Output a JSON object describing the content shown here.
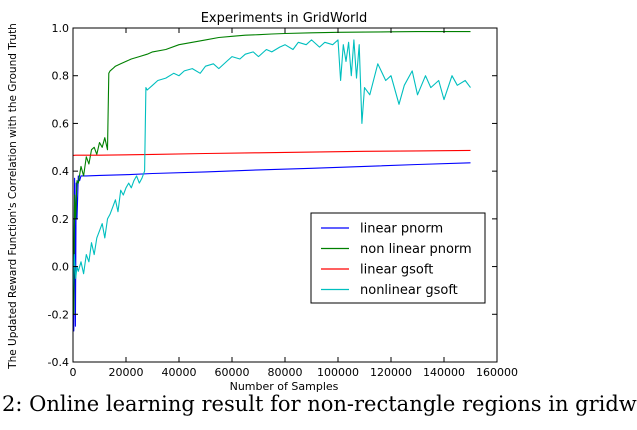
{
  "caption": "2: Online learning result for non-rectangle regions in gridw",
  "chart_data": {
    "type": "line",
    "title": "Experiments in GridWorld",
    "xlabel": "Number of Samples",
    "ylabel": "The Updated Reward Function's Correlation with the Ground Truth",
    "xlim": [
      0,
      160000
    ],
    "ylim": [
      -0.4,
      1.0
    ],
    "xticks": [
      0,
      20000,
      40000,
      60000,
      80000,
      100000,
      120000,
      140000,
      160000
    ],
    "xtick_labels": [
      "0",
      "20000",
      "40000",
      "60000",
      "80000",
      "100000",
      "120000",
      "140000",
      "160000"
    ],
    "yticks": [
      -0.4,
      -0.2,
      0.0,
      0.2,
      0.4,
      0.6,
      0.8,
      1.0
    ],
    "ytick_labels": [
      "-0.4",
      "-0.2",
      "0.0",
      "0.2",
      "0.4",
      "0.6",
      "0.8",
      "1.0"
    ],
    "grid": false,
    "legend_position": "center-right",
    "series": [
      {
        "name": "linear pnorm",
        "color": "#0000ff",
        "x": [
          0,
          300,
          600,
          900,
          1200,
          1500,
          2000,
          2500,
          3000,
          5000,
          10000,
          20000,
          30000,
          50000,
          70000,
          90000,
          110000,
          130000,
          150000
        ],
        "y": [
          0.0,
          -0.27,
          0.37,
          -0.25,
          0.35,
          0.2,
          0.38,
          0.36,
          0.38,
          0.38,
          0.382,
          0.385,
          0.39,
          0.397,
          0.405,
          0.412,
          0.42,
          0.428,
          0.435
        ]
      },
      {
        "name": "non linear pnorm",
        "color": "#008000",
        "x": [
          0,
          300,
          600,
          1000,
          1500,
          2000,
          3000,
          4000,
          5000,
          6000,
          7000,
          8000,
          9000,
          10000,
          11000,
          12000,
          13000,
          13500,
          14000,
          15000,
          16000,
          18000,
          20000,
          22000,
          25000,
          28000,
          30000,
          35000,
          40000,
          45000,
          50000,
          55000,
          60000,
          65000,
          70000,
          75000,
          80000,
          90000,
          100000,
          110000,
          120000,
          130000,
          140000,
          150000
        ],
        "y": [
          0.2,
          -0.2,
          0.3,
          0.2,
          0.36,
          0.35,
          0.42,
          0.38,
          0.46,
          0.43,
          0.49,
          0.5,
          0.47,
          0.52,
          0.5,
          0.54,
          0.49,
          0.81,
          0.82,
          0.83,
          0.84,
          0.85,
          0.86,
          0.87,
          0.88,
          0.89,
          0.9,
          0.91,
          0.93,
          0.94,
          0.95,
          0.96,
          0.965,
          0.97,
          0.972,
          0.975,
          0.977,
          0.98,
          0.982,
          0.983,
          0.984,
          0.985,
          0.985,
          0.985
        ]
      },
      {
        "name": "linear gsoft",
        "color": "#ff0000",
        "x": [
          0,
          1000,
          5000,
          10000,
          30000,
          50000,
          70000,
          90000,
          110000,
          130000,
          150000
        ],
        "y": [
          0.466,
          0.467,
          0.467,
          0.467,
          0.47,
          0.474,
          0.477,
          0.48,
          0.483,
          0.485,
          0.487
        ]
      },
      {
        "name": "nonlinear gsoft",
        "color": "#00bfbf",
        "x": [
          0,
          500,
          1000,
          1500,
          2000,
          3000,
          4000,
          5000,
          6000,
          7000,
          8000,
          9000,
          10000,
          11000,
          12000,
          13000,
          14000,
          15000,
          16000,
          17000,
          18000,
          19000,
          20000,
          21000,
          22000,
          23000,
          24000,
          25000,
          26000,
          27000,
          27500,
          28000,
          30000,
          32000,
          35000,
          38000,
          40000,
          42000,
          45000,
          48000,
          50000,
          53000,
          55000,
          58000,
          60000,
          63000,
          65000,
          68000,
          70000,
          73000,
          75000,
          78000,
          80000,
          83000,
          85000,
          88000,
          90000,
          93000,
          95000,
          98000,
          100000,
          101000,
          102000,
          103000,
          104000,
          105000,
          106000,
          107000,
          108000,
          109000,
          110000,
          112000,
          115000,
          118000,
          120000,
          123000,
          125000,
          128000,
          130000,
          133000,
          135000,
          138000,
          140000,
          143000,
          145000,
          148000,
          150000
        ],
        "y": [
          -0.1,
          0.05,
          -0.05,
          0.0,
          -0.02,
          0.02,
          -0.03,
          0.05,
          0.02,
          0.1,
          0.05,
          0.12,
          0.15,
          0.18,
          0.12,
          0.2,
          0.22,
          0.25,
          0.28,
          0.23,
          0.32,
          0.3,
          0.33,
          0.35,
          0.33,
          0.36,
          0.38,
          0.35,
          0.37,
          0.4,
          0.75,
          0.74,
          0.76,
          0.78,
          0.79,
          0.81,
          0.8,
          0.82,
          0.83,
          0.81,
          0.84,
          0.85,
          0.83,
          0.86,
          0.88,
          0.87,
          0.89,
          0.9,
          0.88,
          0.91,
          0.9,
          0.92,
          0.93,
          0.91,
          0.94,
          0.93,
          0.95,
          0.92,
          0.94,
          0.93,
          0.95,
          0.78,
          0.93,
          0.86,
          0.94,
          0.8,
          0.95,
          0.79,
          0.93,
          0.6,
          0.75,
          0.72,
          0.85,
          0.78,
          0.8,
          0.68,
          0.76,
          0.82,
          0.72,
          0.8,
          0.75,
          0.78,
          0.7,
          0.8,
          0.76,
          0.78,
          0.75
        ]
      }
    ]
  }
}
